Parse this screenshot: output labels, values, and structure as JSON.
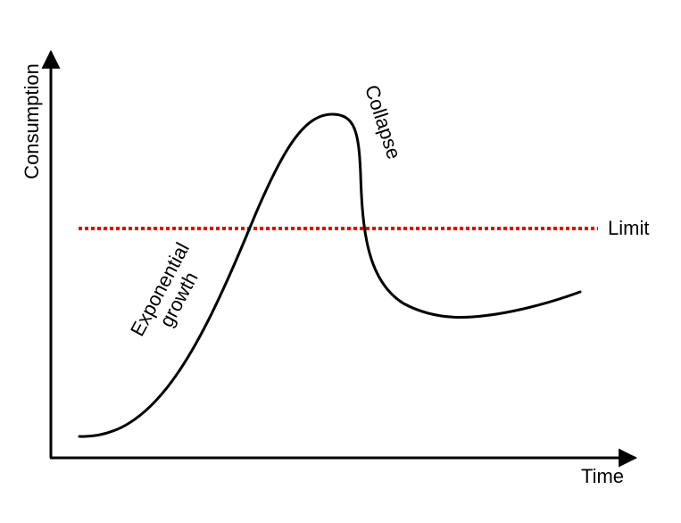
{
  "axes": {
    "y_label": "Consumption",
    "x_label": "Time"
  },
  "annotations": {
    "growth_line1": "Exponential",
    "growth_line2": "growth",
    "collapse": "Collapse",
    "limit": "Limit"
  },
  "colors": {
    "curve": "#000000",
    "limit_line": "#e00000",
    "axes": "#000000"
  }
}
